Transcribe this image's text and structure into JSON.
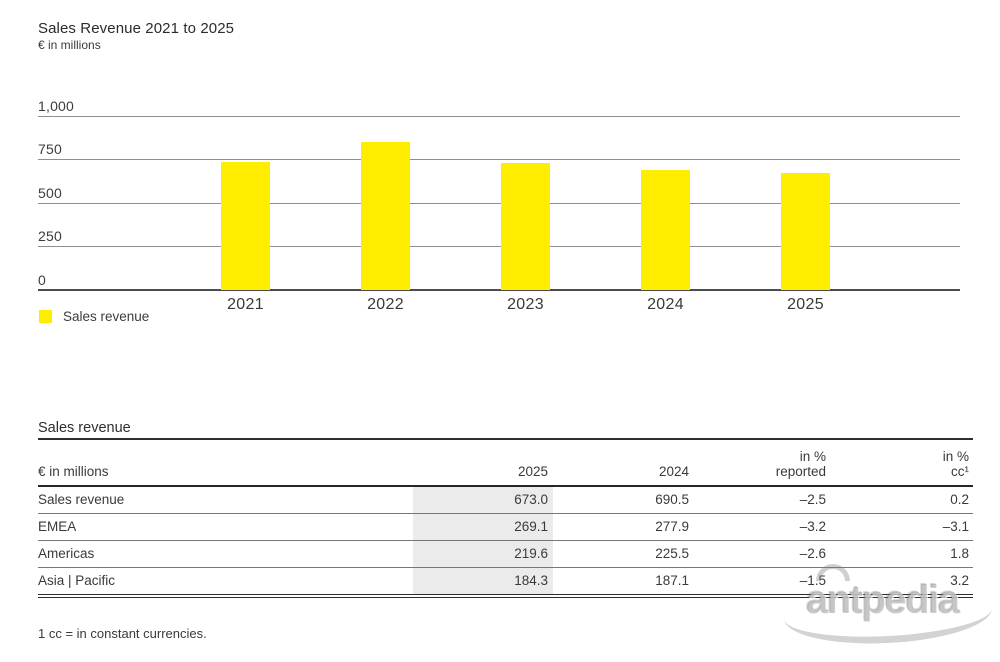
{
  "chart": {
    "title": "Sales Revenue 2021 to 2025",
    "subtitle": "€ in millions",
    "legend_label": "Sales revenue"
  },
  "chart_data": {
    "type": "bar",
    "title": "Sales Revenue 2021 to 2025",
    "ylabel": "€ in millions",
    "xlabel": "",
    "categories": [
      "2021",
      "2022",
      "2023",
      "2024",
      "2025"
    ],
    "series": [
      {
        "name": "Sales revenue",
        "values": [
          733,
          850,
          730,
          690.5,
          673.0
        ]
      }
    ],
    "ylim": [
      0,
      1000
    ],
    "yticks": [
      {
        "value": 0,
        "label": "0"
      },
      {
        "value": 250,
        "label": "250"
      },
      {
        "value": 500,
        "label": "500"
      },
      {
        "value": 750,
        "label": "750"
      },
      {
        "value": 1000,
        "label": "1,000"
      }
    ],
    "grid": true,
    "legend_position": "bottom-left"
  },
  "table": {
    "section_title": "Sales revenue",
    "headers": [
      {
        "lines": [
          "€ in millions"
        ]
      },
      {
        "lines": [
          "2025"
        ]
      },
      {
        "lines": [
          "2024"
        ]
      },
      {
        "lines": [
          "in %",
          "reported"
        ]
      },
      {
        "lines": [
          "in %",
          "cc¹"
        ]
      }
    ],
    "rows": [
      {
        "label": "Sales revenue",
        "cells": [
          "673.0",
          "690.5",
          "–2.5",
          "0.2"
        ]
      },
      {
        "label": "EMEA",
        "cells": [
          "269.1",
          "277.9",
          "–3.2",
          "–3.1"
        ]
      },
      {
        "label": "Americas",
        "cells": [
          "219.6",
          "225.5",
          "–2.6",
          "1.8"
        ]
      },
      {
        "label": "Asia | Pacific",
        "cells": [
          "184.3",
          "187.1",
          "–1.5",
          "3.2"
        ]
      }
    ],
    "highlighted_column": "2025"
  },
  "footnote": "1 cc = in constant currencies.",
  "watermark": {
    "text": "antpedia"
  },
  "colors": {
    "accent_yellow": "#ffed00",
    "highlight_grey": "#ebebeb",
    "grid_grey": "#8f8f8f",
    "axis_grey": "#4c4c4c",
    "text_grey": "#3a3a3a"
  }
}
